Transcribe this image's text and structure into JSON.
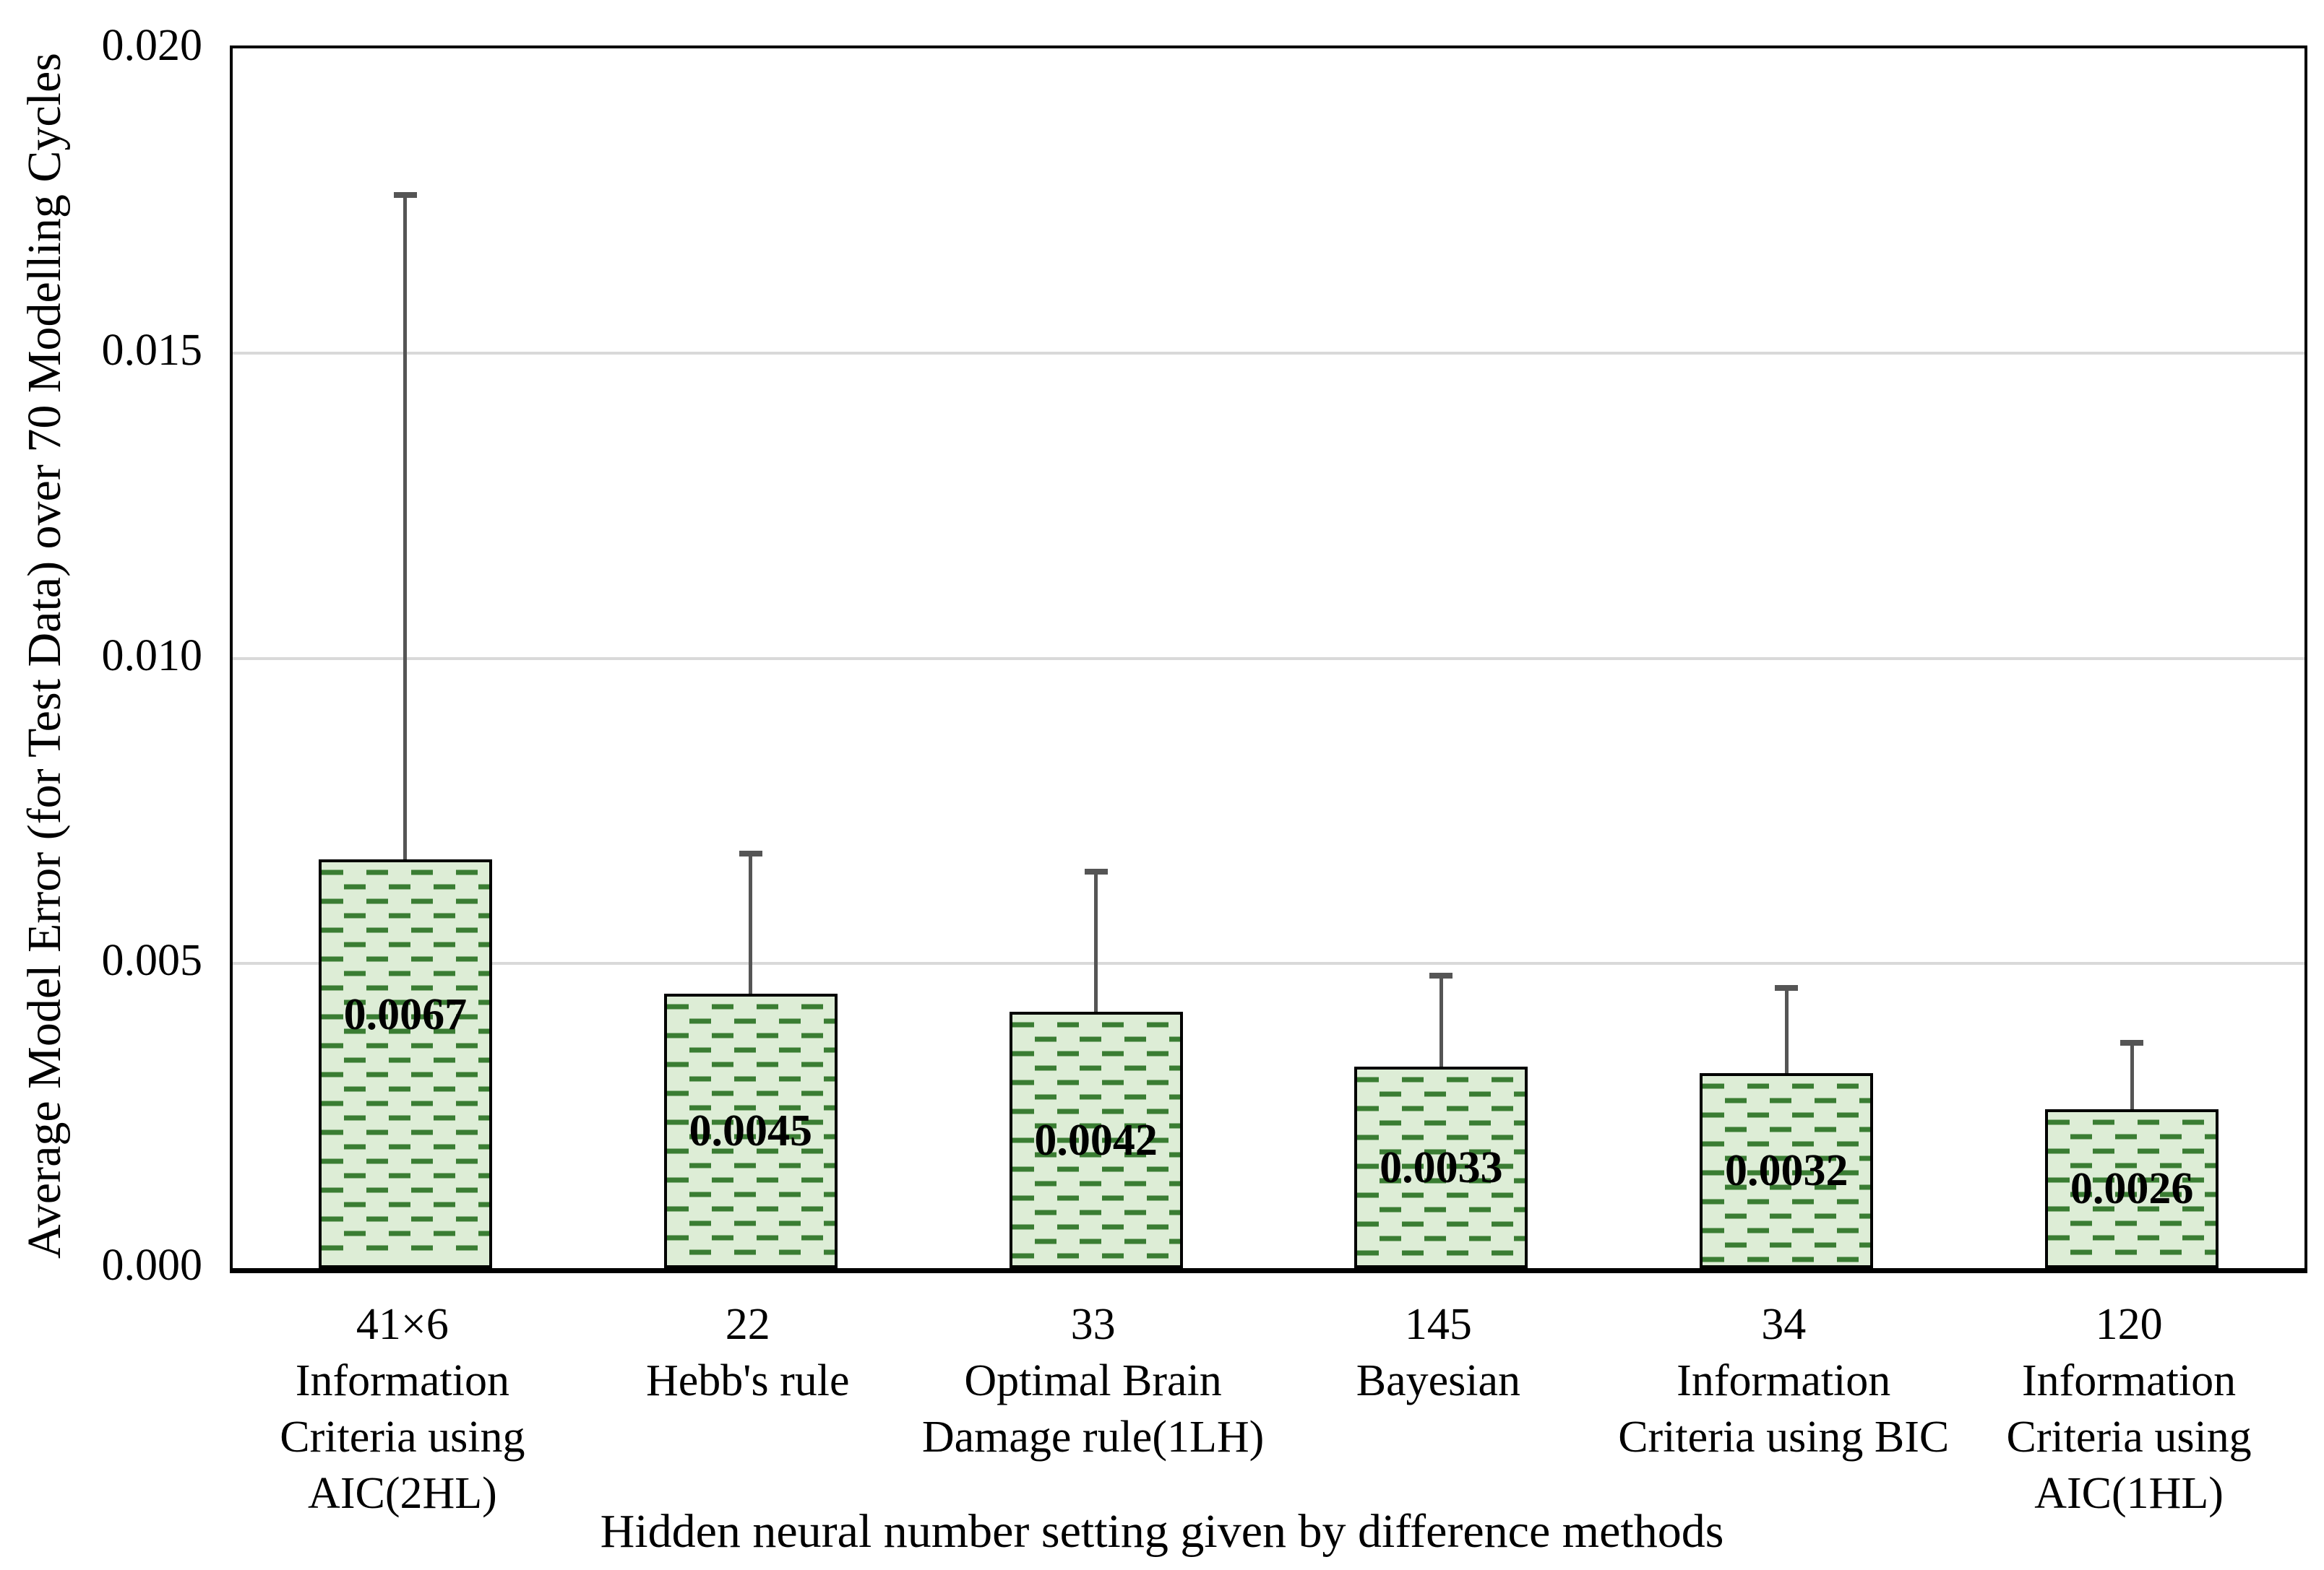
{
  "chart_data": {
    "type": "bar",
    "title": "",
    "xlabel": "Hidden neural number setting given by difference methods",
    "ylabel": "Average Model Error (for Test Data) over 70 Modelling Cycles",
    "ylim": [
      0,
      0.02
    ],
    "yticks": [
      "0.000",
      "0.005",
      "0.010",
      "0.015",
      "0.020"
    ],
    "grid": true,
    "legend_position": "none",
    "categories": [
      "41×6\nInformation\nCriteria using\nAIC(2HL)",
      "22\nHebb's rule",
      "33\nOptimal Brain\nDamage rule(1LH)",
      "145\nBayesian",
      "34\nInformation\nCriteria using BIC",
      "120\nInformation\nCriteria using\nAIC(1HL)"
    ],
    "values": [
      0.0067,
      0.0045,
      0.0042,
      0.0033,
      0.0032,
      0.0026
    ],
    "value_labels": [
      "0.0067",
      "0.0045",
      "0.0042",
      "0.0033",
      "0.0032",
      "0.0026"
    ],
    "error_bar_tops": [
      0.0176,
      0.0068,
      0.0065,
      0.0048,
      0.0046,
      0.0037
    ],
    "colors": {
      "bar_fill": "#ddedd6",
      "bar_hatch": "#3a7d33",
      "bar_border": "#000000",
      "error_bar": "#555555",
      "gridline": "#d9d9d9",
      "text": "#000000"
    }
  }
}
